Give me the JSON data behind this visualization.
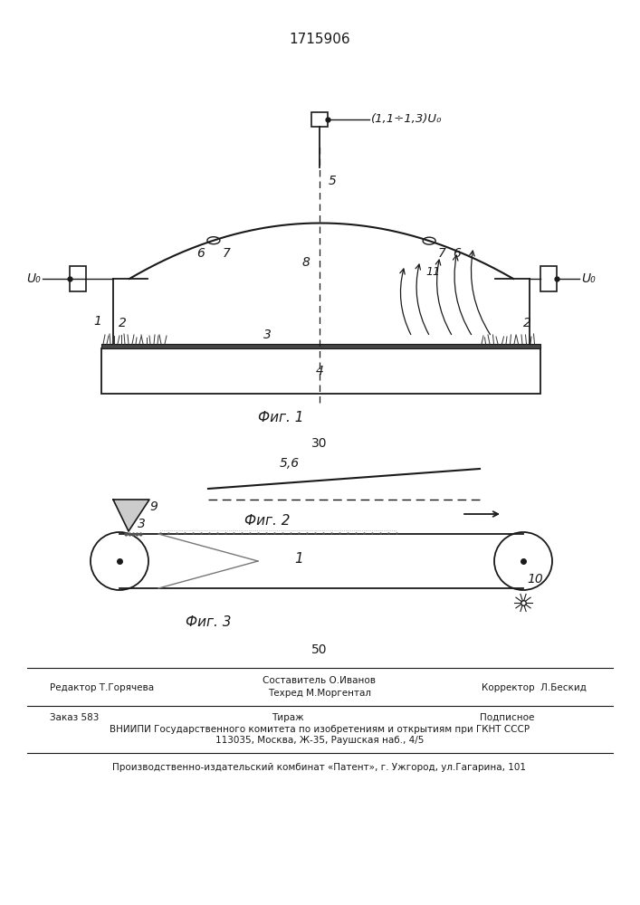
{
  "title": "1715906",
  "fig1_caption": "Фиг. 1",
  "fig2_caption": "Фиг. 2",
  "fig3_caption": "Фиг. 3",
  "page_number_top": "30",
  "page_number_bottom": "50",
  "label_U0_left": "U₀",
  "label_U0_right": "U₀",
  "label_U0_top": "(1,1÷1,3)U₀",
  "label_56": "5,6",
  "footer_line1_left": "Редактор Т.Горячева",
  "footer_line1_c1": "Составитель О.Иванов",
  "footer_line1_c2": "Техред М.Моргентал",
  "footer_line1_right": "Корректор  Л.Бескид",
  "footer_order": "Заказ 583",
  "footer_tirazh": "Тираж",
  "footer_podp": "Подписное",
  "footer_line3": "ВНИИПИ Государственного комитета по изобретениям и открытиям при ГКНТ СССР",
  "footer_line4": "113035, Москва, Ж-35, Раушская наб., 4/5",
  "footer_line5": "Производственно-издательский комбинат «Патент», г. Ужгород, ул.Гагарина, 101",
  "bg_color": "#ffffff",
  "line_color": "#1a1a1a"
}
